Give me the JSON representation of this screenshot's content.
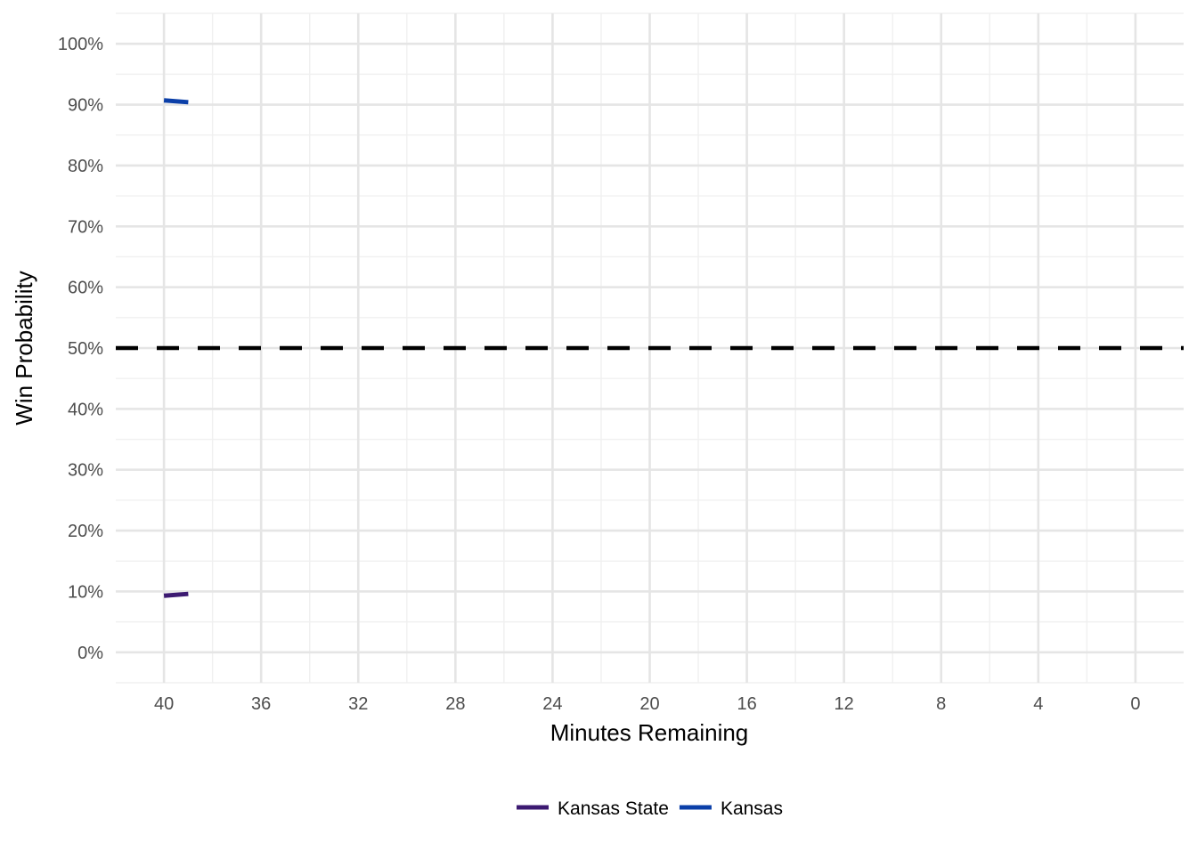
{
  "chart_data": {
    "type": "line",
    "title": "",
    "xlabel": "Minutes Remaining",
    "ylabel": "Win Probability",
    "x_reversed": true,
    "xlim": [
      41.984,
      -1.984
    ],
    "ylim": [
      -0.05,
      1.05
    ],
    "x_major_ticks": [
      40,
      36,
      32,
      28,
      24,
      20,
      16,
      12,
      8,
      4,
      0
    ],
    "x_tick_labels": [
      "40",
      "36",
      "32",
      "28",
      "24",
      "20",
      "16",
      "12",
      "8",
      "4",
      "0"
    ],
    "x_minor_ticks": [
      38,
      34,
      30,
      26,
      22,
      18,
      14,
      10,
      6,
      2
    ],
    "y_major_ticks": [
      0,
      0.1,
      0.2,
      0.3,
      0.4,
      0.5,
      0.6,
      0.7,
      0.8,
      0.9,
      1.0
    ],
    "y_tick_labels": [
      "0%",
      "10%",
      "20%",
      "30%",
      "40%",
      "50%",
      "60%",
      "70%",
      "80%",
      "90%",
      "100%"
    ],
    "y_minor_ticks": [
      -0.05,
      0.05,
      0.15,
      0.25,
      0.35,
      0.45,
      0.55,
      0.65,
      0.75,
      0.85,
      0.95,
      1.05
    ],
    "reference_line": {
      "y": 0.5,
      "style": "dashed",
      "color": "#000000"
    },
    "grid": true,
    "legend_position": "bottom",
    "series": [
      {
        "name": "Kansas State",
        "color": "#3c1a71",
        "x": [
          40,
          39
        ],
        "y": [
          0.093,
          0.096
        ]
      },
      {
        "name": "Kansas",
        "color": "#0b3fa8",
        "x": [
          40,
          39
        ],
        "y": [
          0.907,
          0.904
        ]
      }
    ]
  }
}
